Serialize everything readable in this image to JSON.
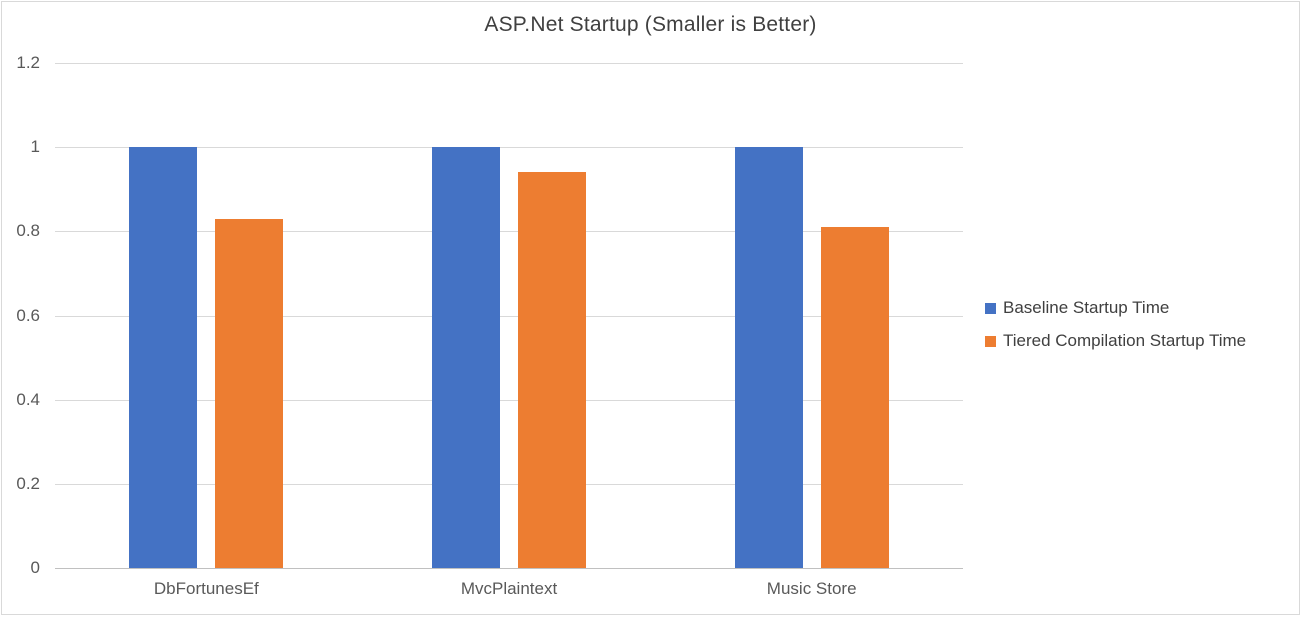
{
  "chart_data": {
    "type": "bar",
    "title": "ASP.Net Startup (Smaller is Better)",
    "categories": [
      "DbFortunesEf",
      "MvcPlaintext",
      "Music Store"
    ],
    "series": [
      {
        "name": "Baseline Startup Time",
        "color": "#4472C4",
        "values": [
          1.0,
          1.0,
          1.0
        ]
      },
      {
        "name": "Tiered Compilation Startup Time",
        "color": "#ED7D31",
        "values": [
          0.83,
          0.94,
          0.81
        ]
      }
    ],
    "xlabel": "",
    "ylabel": "",
    "ylim": [
      0,
      1.2
    ],
    "yticks": [
      {
        "label": "0",
        "value": 0.0
      },
      {
        "label": "0.2",
        "value": 0.2
      },
      {
        "label": "0.4",
        "value": 0.4
      },
      {
        "label": "0.6",
        "value": 0.6
      },
      {
        "label": "0.8",
        "value": 0.8
      },
      {
        "label": "1",
        "value": 1.0
      },
      {
        "label": "1.2",
        "value": 1.2
      }
    ],
    "grid": true,
    "legend_position": "right"
  },
  "colors": {
    "background": "#FFFFFF",
    "border": "#D9D9D9",
    "gridline": "#D9D9D9",
    "axis_line": "#C0C0C0",
    "title_text": "#404040",
    "tick_text": "#595959",
    "legend_text": "#404040",
    "series_blue": "#4472C4",
    "series_orange": "#ED7D31"
  }
}
